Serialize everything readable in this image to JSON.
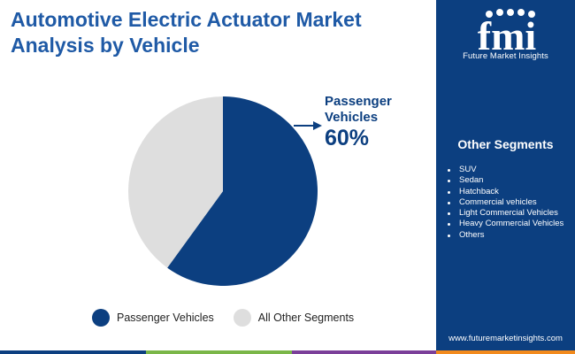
{
  "title": "Automotive Electric Actuator Market Analysis by Vehicle",
  "colors": {
    "title": "#1f5aa6",
    "primary": "#0c3f80",
    "secondary": "#dedede",
    "sidebar": "#0c3f80"
  },
  "sidebar": {
    "logo_text": "fmi",
    "brand": "Future Market Insights",
    "segments_title": "Other Segments",
    "segments": [
      "SUV",
      "Sedan",
      "Hatchback",
      "Commercial vehicles",
      "Light Commercial Vehicles",
      "Heavy Commercial Vehicles",
      "Others"
    ],
    "website": "www.futuremarketinsights.com"
  },
  "chart_data": {
    "type": "pie",
    "categories": [
      "Passenger Vehicles",
      "All Other Segments"
    ],
    "values": [
      60,
      40
    ],
    "colors": [
      "#0c3f80",
      "#dedede"
    ],
    "annotations": [
      {
        "category": "Passenger Vehicles",
        "name": "Passenger Vehicles",
        "value": "60%"
      }
    ],
    "legend_position": "bottom"
  }
}
